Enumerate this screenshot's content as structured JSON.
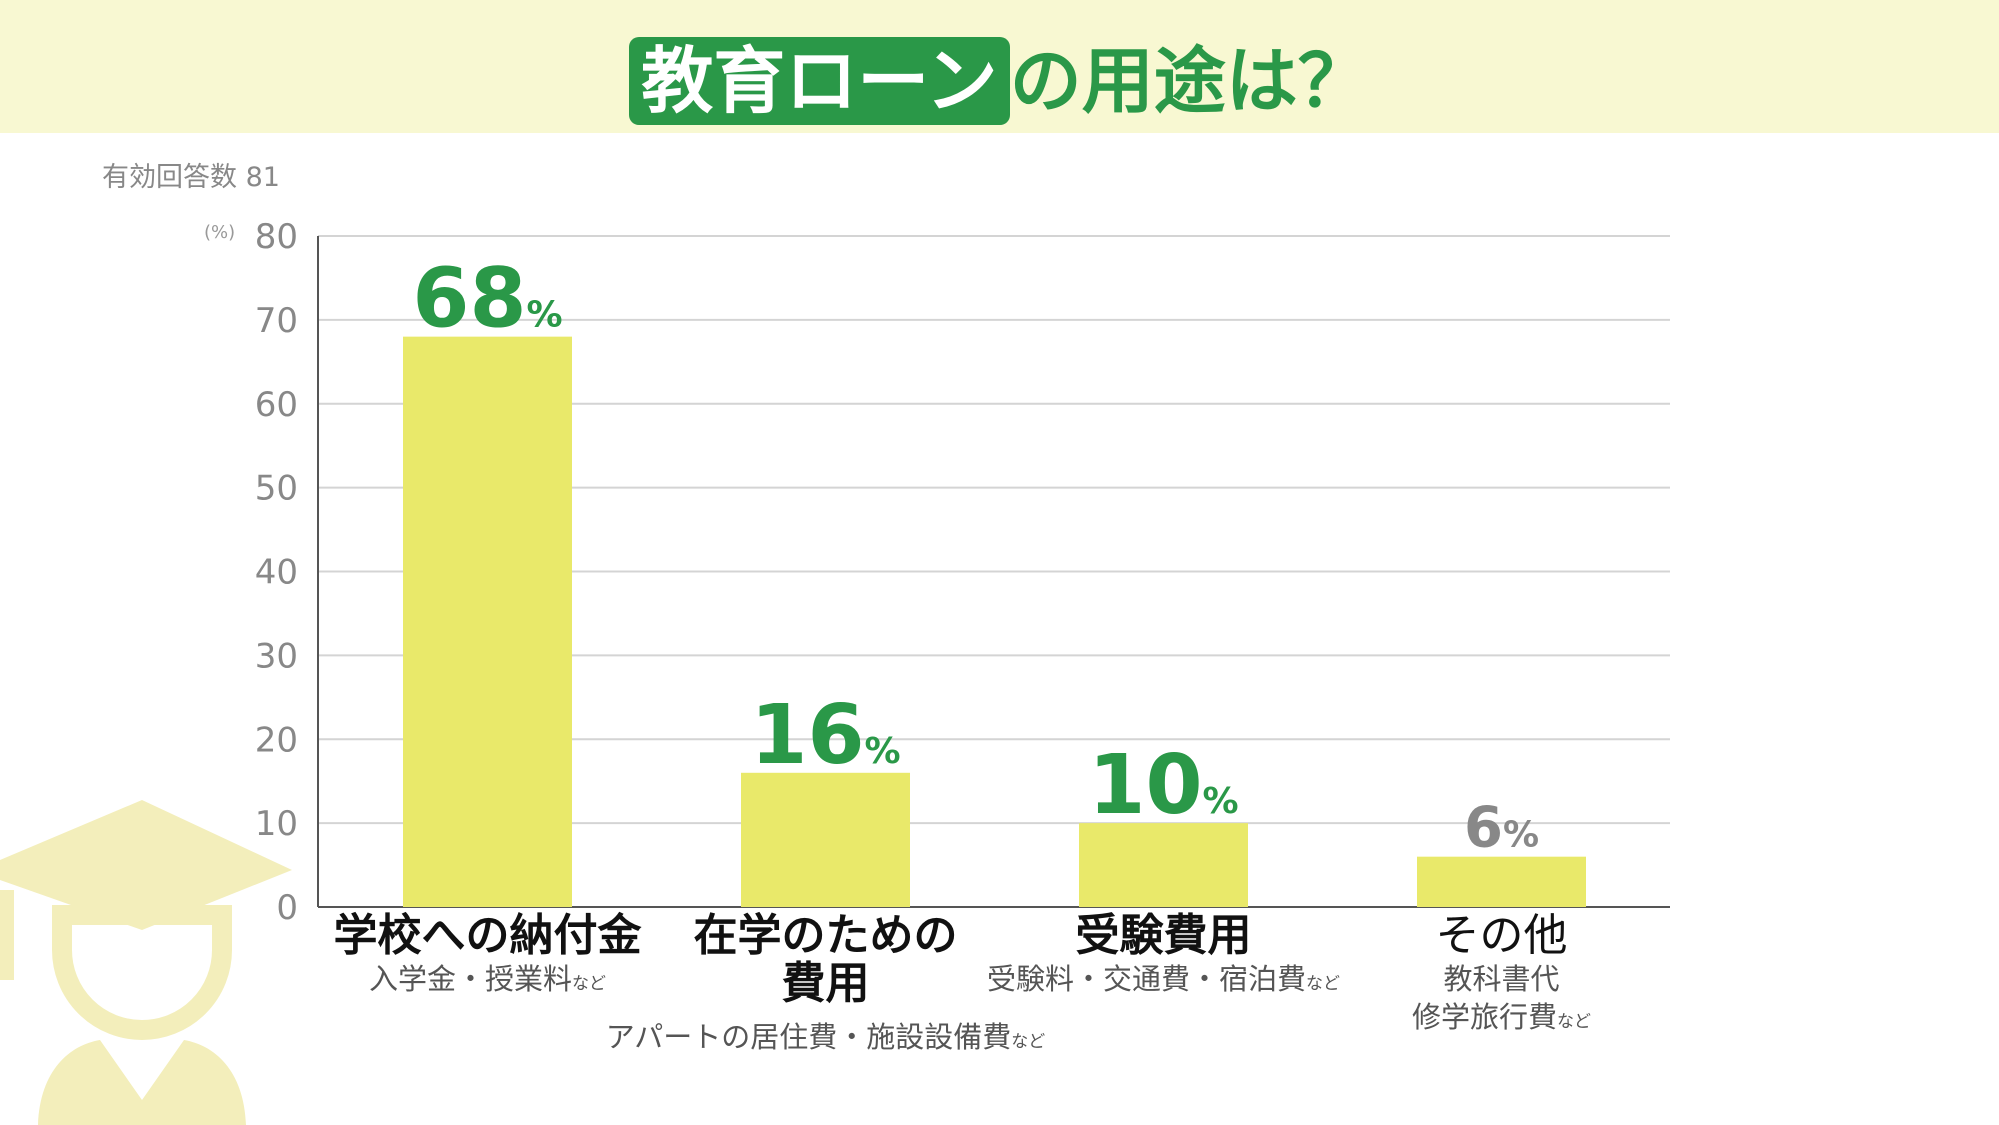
{
  "title": {
    "highlight": "教育ローン",
    "rest": "の用途は？"
  },
  "respondents": "有効回答数 81",
  "colors": {
    "accent": "#2a9848",
    "bar": "#e9e96a",
    "header_bg": "#f8f8d2",
    "muted_label": "#888888",
    "cap_icon": "#f3eebb"
  },
  "icon": "graduation-cap-person-icon",
  "chart_data": {
    "type": "bar",
    "ylabel": "(%)",
    "ylim": [
      0,
      80
    ],
    "yticks": [
      0,
      10,
      20,
      30,
      40,
      50,
      60,
      70,
      80
    ],
    "grid": true,
    "categories": [
      "学校への納付金",
      "在学のための費用",
      "受験費用",
      "その他"
    ],
    "values": [
      68,
      16,
      10,
      6
    ],
    "value_labels": [
      "68",
      "16",
      "10",
      "6"
    ],
    "value_suffix": "%",
    "details": [
      {
        "main_lines": [
          "学校への納付金"
        ],
        "sub_lines": [
          "入学金・授業料"
        ],
        "suffix": "など"
      },
      {
        "main_lines": [
          "在学のための",
          "費用"
        ],
        "sub_lines": [
          "アパートの居住費・施設設備費"
        ],
        "suffix": "など"
      },
      {
        "main_lines": [
          "受験費用"
        ],
        "sub_lines": [
          "受験料・交通費・宿泊費"
        ],
        "suffix": "など"
      },
      {
        "main_lines": [
          "その他"
        ],
        "sub_lines": [
          "教科書代",
          "修学旅行費"
        ],
        "suffix": "など"
      }
    ]
  }
}
